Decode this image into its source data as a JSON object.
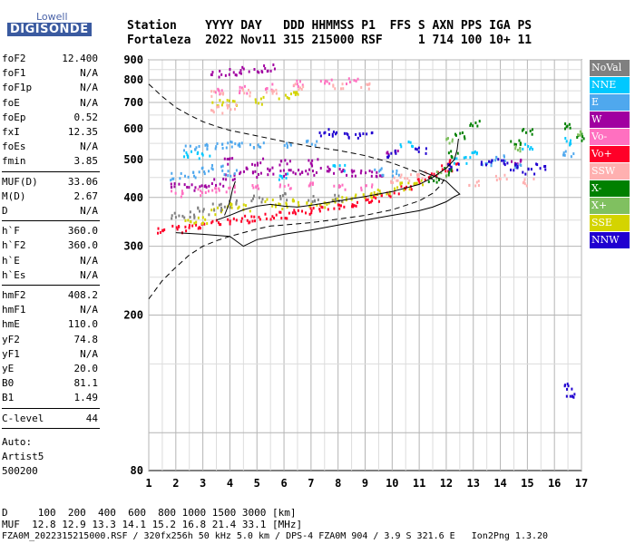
{
  "logo": {
    "company": "Lowell",
    "product": "DIGISONDE"
  },
  "header": {
    "line1": "Station    YYYY DAY   DDD HHMMSS P1  FFS S AXN PPS IGA PS",
    "line2": "Fortaleza  2022 Nov11 315 215000 RSF     1 714 100 10+ 11"
  },
  "side": {
    "group1": [
      {
        "k": "foF2",
        "v": "12.400"
      },
      {
        "k": "foF1",
        "v": "N/A"
      },
      {
        "k": "foF1p",
        "v": "N/A"
      },
      {
        "k": "foE",
        "v": "N/A"
      },
      {
        "k": "foEp",
        "v": "0.52"
      },
      {
        "k": "fxI",
        "v": "12.35"
      },
      {
        "k": "foEs",
        "v": "N/A"
      },
      {
        "k": "fmin",
        "v": "3.85"
      }
    ],
    "group2": [
      {
        "k": "MUF(D)",
        "v": "33.06"
      },
      {
        "k": "M(D)",
        "v": "2.67"
      },
      {
        "k": "D",
        "v": "N/A"
      }
    ],
    "group3": [
      {
        "k": "h`F",
        "v": "360.0"
      },
      {
        "k": "h`F2",
        "v": "360.0"
      },
      {
        "k": "h`E",
        "v": "N/A"
      },
      {
        "k": "h`Es",
        "v": "N/A"
      }
    ],
    "group4": [
      {
        "k": "hmF2",
        "v": "408.2"
      },
      {
        "k": "hmF1",
        "v": "N/A"
      },
      {
        "k": "hmE",
        "v": "110.0"
      },
      {
        "k": "yF2",
        "v": "74.8"
      },
      {
        "k": "yF1",
        "v": "N/A"
      },
      {
        "k": "yE",
        "v": "20.0"
      },
      {
        "k": "B0",
        "v": "81.1"
      },
      {
        "k": "B1",
        "v": "1.49"
      }
    ],
    "group5": [
      {
        "k": "C-level",
        "v": "44"
      }
    ],
    "auto_lines": [
      "Auto:",
      "Artist5",
      "500200"
    ]
  },
  "legend": [
    {
      "label": "NoVal",
      "color": "#808080"
    },
    {
      "label": "NNE",
      "color": "#00c8ff"
    },
    {
      "label": "E",
      "color": "#4fa8ee"
    },
    {
      "label": "W",
      "color": "#a000a0"
    },
    {
      "label": "Vo-",
      "color": "#ff70c0"
    },
    {
      "label": "Vo+",
      "color": "#ff0028"
    },
    {
      "label": "SSW",
      "color": "#ffb0b0"
    },
    {
      "label": "X-",
      "color": "#008000"
    },
    {
      "label": "X+",
      "color": "#80c060"
    },
    {
      "label": "SSE",
      "color": "#d4d400"
    },
    {
      "label": "NNW",
      "color": "#2000d0"
    }
  ],
  "footer": {
    "line1": "D     100  200  400  600  800 1000 1500 3000 [km]",
    "line2": "MUF  12.8 12.9 13.3 14.1 15.2 16.8 21.4 33.1 [MHz]",
    "line3": "FZA0M_2022315215000.RSF / 320fx256h 50 kHz 5.0 km / DPS-4 FZA0M 904 / 3.9 S 321.6 E   Ion2Png 1.3.20"
  },
  "chart_data": {
    "type": "scatter",
    "title": "",
    "xlabel": "",
    "ylabel": "",
    "xlim": [
      1,
      17
    ],
    "ylim": [
      80,
      900
    ],
    "y_scale": "log",
    "x_ticks": [
      1,
      2,
      3,
      4,
      5,
      6,
      7,
      8,
      9,
      10,
      11,
      12,
      13,
      14,
      15,
      16,
      17
    ],
    "y_ticks": [
      80,
      200,
      300,
      400,
      500,
      600,
      700,
      800,
      900
    ],
    "grid": true,
    "series": [
      {
        "name": "Vo+",
        "color": "#ff0028",
        "points": [
          [
            1.5,
            332
          ],
          [
            2.0,
            334
          ],
          [
            2.5,
            338
          ],
          [
            3.0,
            342
          ],
          [
            3.5,
            346
          ],
          [
            4.0,
            350
          ],
          [
            4.5,
            354
          ],
          [
            5.0,
            358
          ],
          [
            5.5,
            360
          ],
          [
            6.0,
            362
          ],
          [
            6.5,
            366
          ],
          [
            7.0,
            372
          ],
          [
            7.5,
            378
          ],
          [
            8.0,
            384
          ],
          [
            8.5,
            390
          ],
          [
            9.0,
            396
          ],
          [
            9.5,
            402
          ],
          [
            10.0,
            412
          ],
          [
            10.5,
            424
          ],
          [
            11.0,
            440
          ],
          [
            11.5,
            458
          ],
          [
            12.0,
            480
          ],
          [
            12.2,
            495
          ]
        ]
      },
      {
        "name": "SSE",
        "color": "#d4d400",
        "points": [
          [
            2.5,
            350
          ],
          [
            3.0,
            352
          ],
          [
            3.5,
            372
          ],
          [
            4.0,
            382
          ],
          [
            4.5,
            378
          ],
          [
            5.5,
            390
          ],
          [
            6.0,
            384
          ],
          [
            6.5,
            392
          ],
          [
            7.0,
            388
          ],
          [
            7.5,
            386
          ],
          [
            8.0,
            396
          ],
          [
            8.5,
            402
          ],
          [
            9.0,
            408
          ],
          [
            9.5,
            414
          ],
          [
            10.0,
            420
          ],
          [
            10.5,
            430
          ],
          [
            11.0,
            438
          ],
          [
            3.5,
            700
          ],
          [
            4.0,
            705
          ],
          [
            5.0,
            712
          ],
          [
            6.0,
            730
          ],
          [
            6.5,
            738
          ]
        ]
      },
      {
        "name": "W",
        "color": "#a000a0",
        "points": [
          [
            2.0,
            430
          ],
          [
            2.5,
            428
          ],
          [
            3.0,
            435
          ],
          [
            3.5,
            440
          ],
          [
            4.0,
            455
          ],
          [
            4.5,
            470
          ],
          [
            5.0,
            462
          ],
          [
            5.5,
            470
          ],
          [
            6.0,
            465
          ],
          [
            6.5,
            472
          ],
          [
            7.0,
            468
          ],
          [
            7.5,
            475
          ],
          [
            8.0,
            470
          ],
          [
            8.5,
            466
          ],
          [
            9.0,
            462
          ],
          [
            9.5,
            458
          ],
          [
            4.0,
            500
          ],
          [
            5.0,
            498
          ],
          [
            6.0,
            496
          ],
          [
            7.0,
            494
          ],
          [
            3.5,
            835
          ],
          [
            4.0,
            842
          ],
          [
            4.5,
            850
          ],
          [
            5.0,
            858
          ],
          [
            5.5,
            865
          ],
          [
            10.0,
            520
          ],
          [
            14.5,
            500
          ]
        ]
      },
      {
        "name": "E",
        "color": "#4fa8ee",
        "points": [
          [
            2.0,
            455
          ],
          [
            2.5,
            462
          ],
          [
            3.0,
            470
          ],
          [
            3.5,
            478
          ],
          [
            4.0,
            465
          ],
          [
            2.5,
            540
          ],
          [
            3.0,
            542
          ],
          [
            3.5,
            545
          ],
          [
            4.0,
            548
          ],
          [
            4.5,
            545
          ],
          [
            5.0,
            550
          ],
          [
            6.0,
            548
          ],
          [
            7.0,
            552
          ],
          [
            9.5,
            468
          ],
          [
            10.0,
            462
          ],
          [
            13.5,
            495
          ],
          [
            14.0,
            505
          ],
          [
            14.5,
            490
          ],
          [
            16.5,
            520
          ]
        ]
      },
      {
        "name": "NNE",
        "color": "#00c8ff",
        "points": [
          [
            2.5,
            520
          ],
          [
            3.0,
            515
          ],
          [
            6.0,
            455
          ],
          [
            8.0,
            480
          ],
          [
            10.5,
            550
          ],
          [
            12.5,
            500
          ],
          [
            13.0,
            520
          ],
          [
            15.0,
            540
          ],
          [
            16.6,
            560
          ]
        ]
      },
      {
        "name": "Vo-",
        "color": "#ff70c0",
        "points": [
          [
            2.0,
            410
          ],
          [
            3.0,
            415
          ],
          [
            3.5,
            420
          ],
          [
            4.0,
            425
          ],
          [
            5.0,
            430
          ],
          [
            6.0,
            428
          ],
          [
            7.0,
            432
          ],
          [
            8.0,
            430
          ],
          [
            9.0,
            428
          ],
          [
            3.5,
            750
          ],
          [
            4.5,
            760
          ],
          [
            5.5,
            770
          ],
          [
            6.5,
            785
          ],
          [
            7.5,
            790
          ],
          [
            8.5,
            795
          ]
        ]
      },
      {
        "name": "SSW",
        "color": "#ffb0b0",
        "points": [
          [
            3.5,
            740
          ],
          [
            4.5,
            748
          ],
          [
            5.5,
            756
          ],
          [
            6.5,
            770
          ],
          [
            8.0,
            775
          ],
          [
            9.0,
            780
          ],
          [
            3.5,
            675
          ],
          [
            4.0,
            682
          ],
          [
            10.0,
            445
          ],
          [
            10.5,
            452
          ],
          [
            11.0,
            460
          ],
          [
            13.0,
            440
          ],
          [
            14.0,
            455
          ],
          [
            15.0,
            440
          ]
        ]
      },
      {
        "name": "X-",
        "color": "#008000",
        "points": [
          [
            11.5,
            450
          ],
          [
            12.0,
            470
          ],
          [
            12.3,
            520
          ],
          [
            12.5,
            580
          ],
          [
            13.0,
            620
          ],
          [
            14.5,
            560
          ],
          [
            15.0,
            590
          ],
          [
            16.5,
            610
          ],
          [
            16.9,
            575
          ]
        ]
      },
      {
        "name": "X+",
        "color": "#80c060",
        "points": [
          [
            11.8,
            460
          ],
          [
            12.2,
            560
          ],
          [
            14.7,
            540
          ],
          [
            16.8,
            590
          ]
        ]
      },
      {
        "name": "NNW",
        "color": "#2000d0",
        "points": [
          [
            7.5,
            590
          ],
          [
            8.0,
            585
          ],
          [
            8.5,
            575
          ],
          [
            9.0,
            585
          ],
          [
            10.0,
            520
          ],
          [
            11.0,
            530
          ],
          [
            12.2,
            480
          ],
          [
            13.5,
            492
          ],
          [
            14.0,
            498
          ],
          [
            14.5,
            480
          ],
          [
            15.0,
            470
          ],
          [
            15.5,
            485
          ],
          [
            16.5,
            125
          ],
          [
            16.4,
            132
          ]
        ]
      },
      {
        "name": "NoVal",
        "color": "#808080",
        "points": [
          [
            2.0,
            360
          ],
          [
            2.5,
            365
          ],
          [
            3.0,
            372
          ],
          [
            3.5,
            380
          ],
          [
            4.0,
            388
          ],
          [
            5.0,
            400
          ],
          [
            6.0,
            405
          ],
          [
            7.0,
            398
          ],
          [
            8.0,
            400
          ]
        ]
      }
    ],
    "traces": [
      {
        "style": "dashed",
        "points": [
          [
            1.0,
            220
          ],
          [
            1.5,
            245
          ],
          [
            2.0,
            265
          ],
          [
            2.5,
            285
          ],
          [
            3.0,
            300
          ],
          [
            3.5,
            310
          ],
          [
            4.0,
            318
          ],
          [
            4.5,
            325
          ],
          [
            5.0,
            332
          ],
          [
            5.5,
            338
          ],
          [
            6.0,
            340
          ],
          [
            7.0,
            345
          ],
          [
            8.0,
            352
          ],
          [
            9.0,
            360
          ],
          [
            10.0,
            372
          ],
          [
            11.0,
            392
          ],
          [
            11.5,
            410
          ],
          [
            11.8,
            430
          ],
          [
            12.0,
            455
          ]
        ]
      },
      {
        "style": "dashed",
        "points": [
          [
            1.0,
            780
          ],
          [
            1.5,
            725
          ],
          [
            2.0,
            680
          ],
          [
            2.5,
            650
          ],
          [
            3.0,
            625
          ],
          [
            3.5,
            608
          ],
          [
            4.0,
            594
          ],
          [
            5.0,
            575
          ],
          [
            6.0,
            556
          ],
          [
            7.0,
            540
          ],
          [
            8.0,
            528
          ],
          [
            9.0,
            512
          ],
          [
            10.0,
            490
          ],
          [
            11.0,
            462
          ],
          [
            11.5,
            445
          ]
        ]
      },
      {
        "style": "solid",
        "points": [
          [
            2.0,
            325
          ],
          [
            3.0,
            322
          ],
          [
            4.0,
            318
          ],
          [
            4.5,
            300
          ],
          [
            5.0,
            312
          ],
          [
            6.0,
            322
          ],
          [
            7.0,
            330
          ],
          [
            8.0,
            340
          ],
          [
            9.0,
            350
          ],
          [
            10.0,
            360
          ],
          [
            11.0,
            370
          ],
          [
            11.5,
            378
          ],
          [
            12.0,
            390
          ],
          [
            12.3,
            402
          ],
          [
            12.5,
            408
          ],
          [
            12.3,
            420
          ],
          [
            12.0,
            440
          ],
          [
            11.5,
            455
          ],
          [
            11.0,
            470
          ]
        ]
      },
      {
        "style": "solid",
        "points": [
          [
            3.5,
            350
          ],
          [
            4.0,
            360
          ],
          [
            4.5,
            372
          ],
          [
            5.0,
            380
          ],
          [
            5.5,
            384
          ],
          [
            6.0,
            380
          ],
          [
            6.5,
            378
          ],
          [
            7.0,
            382
          ],
          [
            8.0,
            392
          ],
          [
            9.0,
            402
          ],
          [
            10.0,
            414
          ],
          [
            11.0,
            432
          ],
          [
            11.5,
            450
          ],
          [
            12.0,
            475
          ],
          [
            12.3,
            500
          ],
          [
            12.4,
            530
          ],
          [
            12.45,
            565
          ]
        ]
      },
      {
        "style": "solid",
        "points": [
          [
            3.8,
            360
          ],
          [
            4.0,
            390
          ],
          [
            4.1,
            420
          ],
          [
            4.2,
            440
          ]
        ]
      }
    ]
  }
}
